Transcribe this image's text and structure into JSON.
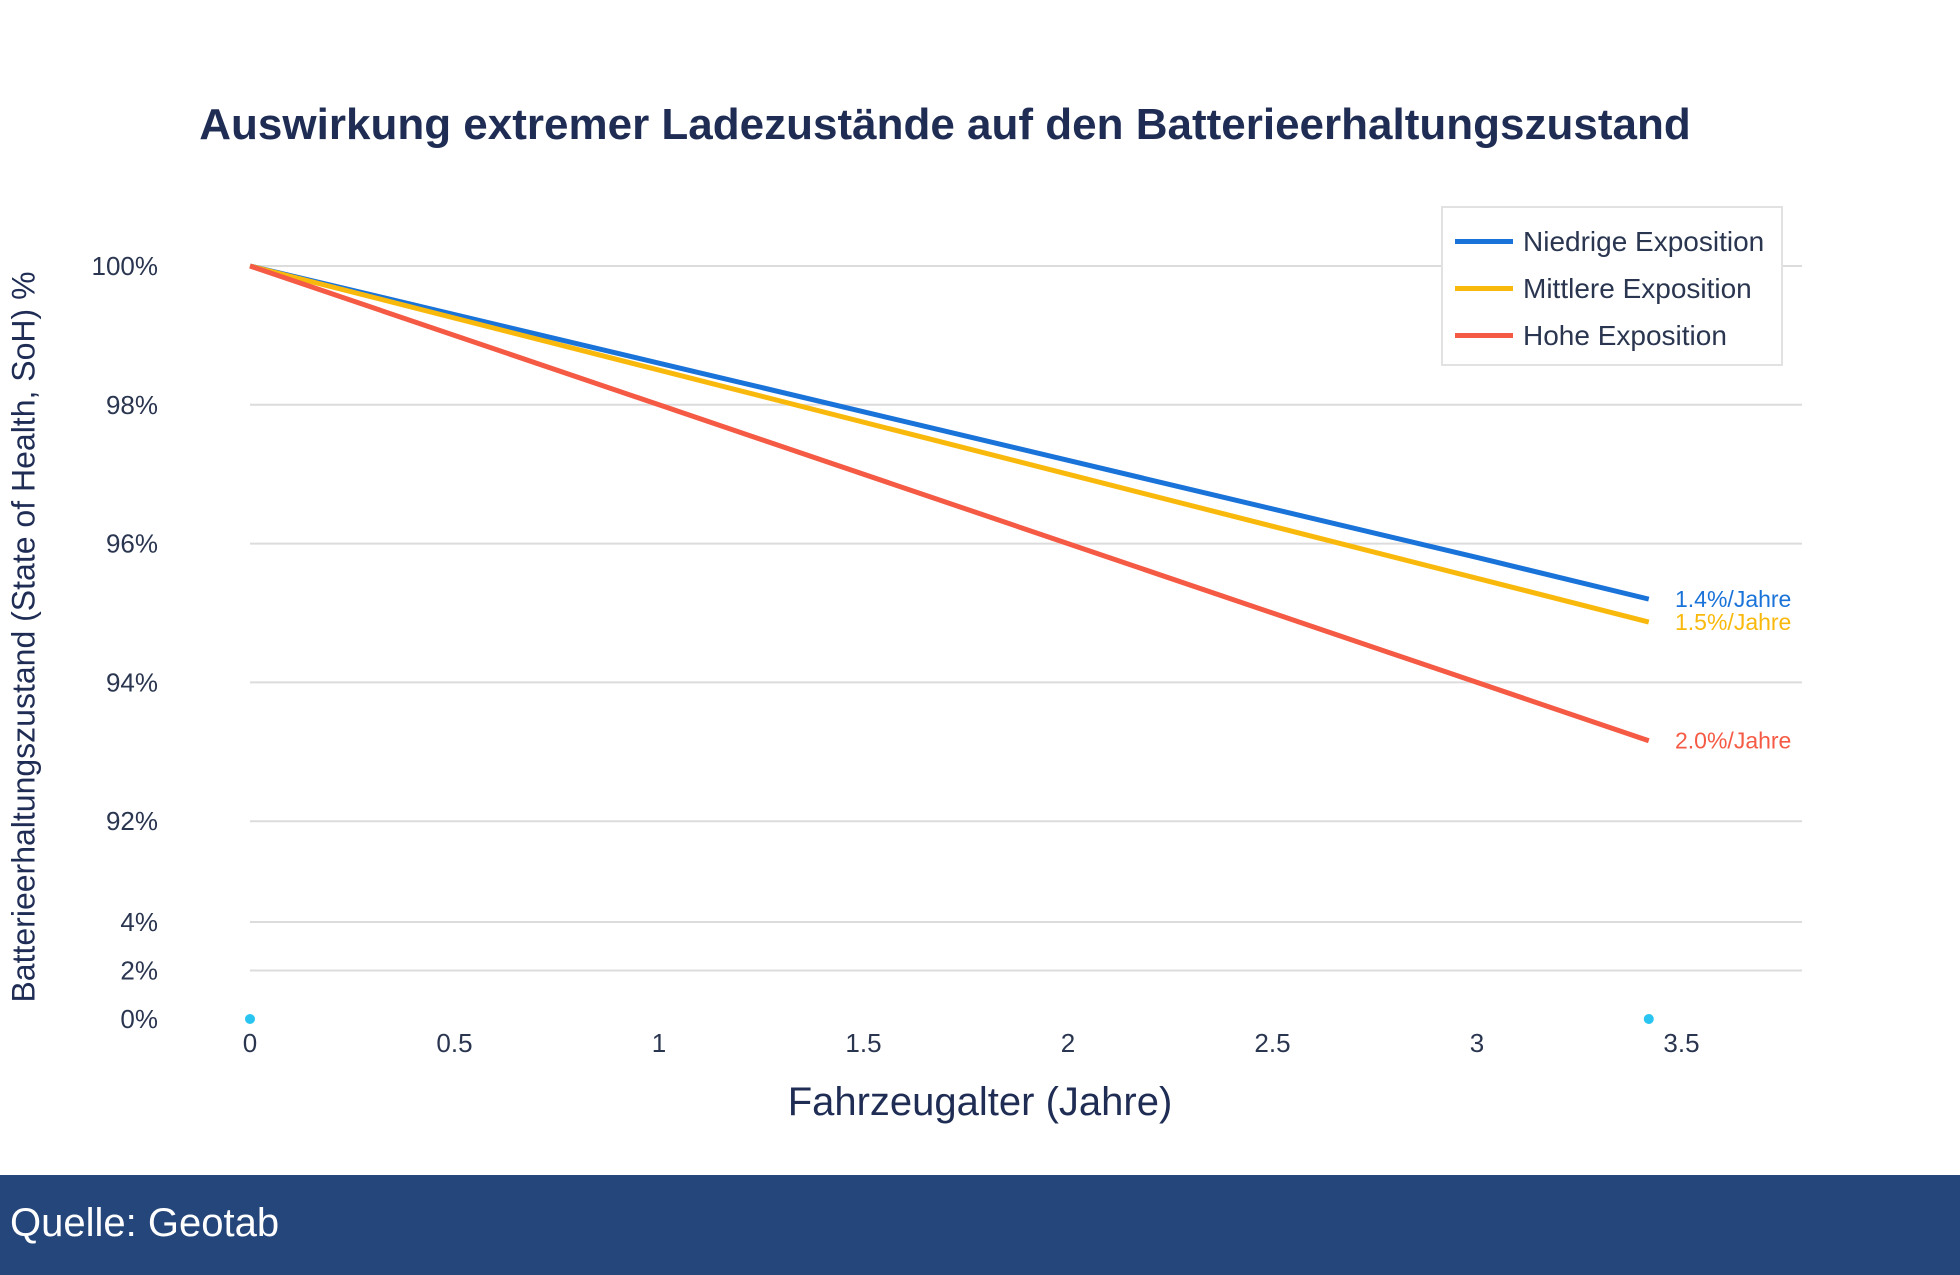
{
  "chart_data": {
    "type": "line",
    "title": "Auswirkung extremer Ladezustände auf den Batterieerhaltungszustand",
    "xlabel": "Fahrzeugalter (Jahre)",
    "ylabel": "Batterieerhaltungszustand (State of Health, SoH) %",
    "x_ticks": [
      "0",
      "0.5",
      "1",
      "1.5",
      "2",
      "2.5",
      "3",
      "3.5"
    ],
    "x_tick_values": [
      0,
      0.5,
      1,
      1.5,
      2,
      2.5,
      3,
      3.5
    ],
    "y_ticks": [
      "100%",
      "98%",
      "96%",
      "94%",
      "92%",
      "4%",
      "2%",
      "0%"
    ],
    "y_tick_values": [
      100,
      98,
      96,
      94,
      92,
      4,
      2,
      0
    ],
    "y_axis_broken": true,
    "xlim": [
      -0.15,
      3.8
    ],
    "grid": true,
    "legend_position": "top-right",
    "x": [
      0,
      1,
      2,
      3,
      3.42
    ],
    "series": [
      {
        "name": "Niedrige Exposition",
        "color": "#1a73d9",
        "values": [
          100,
          98.6,
          97.2,
          95.8,
          95.2
        ],
        "end_label": "1.4%/Jahre"
      },
      {
        "name": "Mittlere Exposition",
        "color": "#f9b90c",
        "values": [
          100,
          98.5,
          97.0,
          95.5,
          94.87
        ],
        "end_label": "1.5%/Jahre"
      },
      {
        "name": "Hohe Exposition",
        "color": "#f55a45",
        "values": [
          100,
          98.0,
          96.0,
          94.0,
          93.16
        ],
        "end_label": "2.0%/Jahre"
      }
    ],
    "markers": {
      "color": "#29c5f0",
      "x": [
        0,
        3.42
      ],
      "y": [
        0,
        0
      ]
    }
  },
  "footer": {
    "source": "Quelle: Geotab"
  }
}
